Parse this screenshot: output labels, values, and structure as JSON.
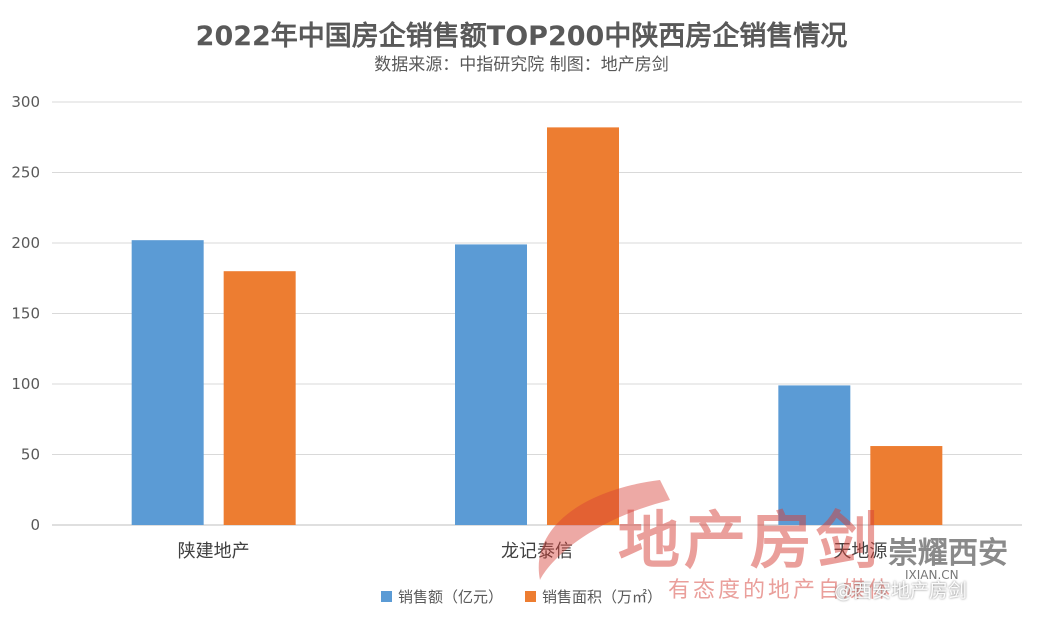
{
  "chart_data": {
    "type": "bar",
    "title": "2022年中国房企销售额TOP200中陕西房企销售情况",
    "subtitle": "数据来源：中指研究院  制图：地产房剑",
    "categories": [
      "陕建地产",
      "龙记泰信",
      "天地源"
    ],
    "series": [
      {
        "name": "销售额（亿元）",
        "color": "#5b9bd5",
        "values": [
          202,
          199,
          99
        ]
      },
      {
        "name": "销售面积（万㎡）",
        "color": "#ed7d31",
        "values": [
          180,
          282,
          56
        ]
      }
    ],
    "ylim": [
      0,
      300
    ],
    "yticks": [
      0,
      50,
      100,
      150,
      200,
      250,
      300
    ],
    "grid": true,
    "legend_position": "bottom"
  },
  "watermark": {
    "main": "地产房剑",
    "slogan": "有态度的地产自媒体",
    "brand": "崇耀西安",
    "url": "IXIAN.CN",
    "handle": "@西安地产房剑"
  }
}
